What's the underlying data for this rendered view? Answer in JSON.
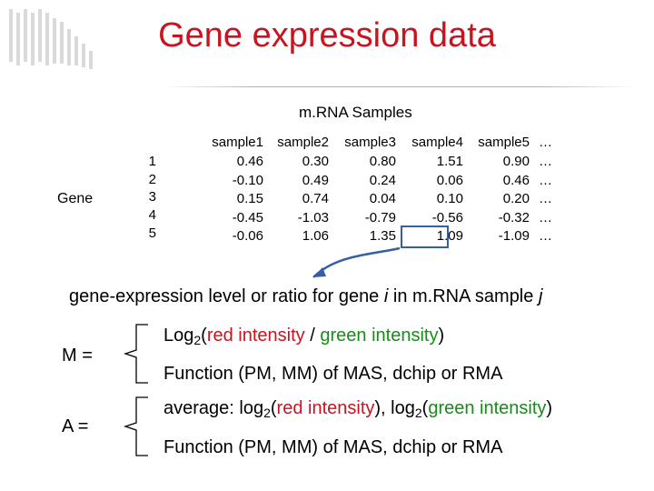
{
  "title": "Gene expression data",
  "samples_heading": "m.RNA Samples",
  "gene_label": "Gene",
  "table": {
    "columns": [
      {
        "header": "sample1",
        "values": [
          "0.46",
          "-0.10",
          "0.15",
          "-0.45",
          "-0.06"
        ]
      },
      {
        "header": "sample2",
        "values": [
          "0.30",
          "0.49",
          "0.74",
          "-1.03",
          "1.06"
        ]
      },
      {
        "header": "sample3",
        "values": [
          "0.80",
          "0.24",
          "0.04",
          "-0.79",
          "1.35"
        ]
      },
      {
        "header": "sample4",
        "values": [
          "1.51",
          "0.06",
          "0.10",
          "-0.56",
          "1.09"
        ]
      },
      {
        "header": "sample5",
        "values": [
          "0.90",
          "0.46",
          "0.20",
          "-0.32",
          "-1.09"
        ]
      },
      {
        "header": "…",
        "values": [
          "…",
          "…",
          "…",
          "…",
          "…"
        ]
      }
    ],
    "row_numbers": [
      "1",
      "2",
      "3",
      "4",
      "5"
    ]
  },
  "description": {
    "part1": "gene-expression level or ratio for gene ",
    "var_i": "i",
    "part2": " in m.RNA sample ",
    "var_j": "j"
  },
  "m_block": {
    "label": "M =",
    "log_prefix": "Log",
    "log_sub": "2",
    "paren_open": "(",
    "red_text": "red intensity",
    "slash": " / ",
    "green_text": "green intensity",
    "paren_close": ")",
    "function_text": "Function (PM, MM) of MAS, dchip or RMA"
  },
  "a_block": {
    "label": "A =",
    "avg_prefix": "average: log",
    "log_sub": "2",
    "paren_open": "(",
    "red_text": "red intensity",
    "mid": "), log",
    "log_sub2": "2",
    "paren_open2": "(",
    "green_text": "green intensity",
    "paren_close": ")",
    "function_text": "Function (PM, MM) of MAS, dchip or RMA"
  },
  "colors": {
    "title": "#c8141e",
    "red": "#c8141e",
    "green": "#1a8a1a",
    "highlight": "#3560a8"
  }
}
